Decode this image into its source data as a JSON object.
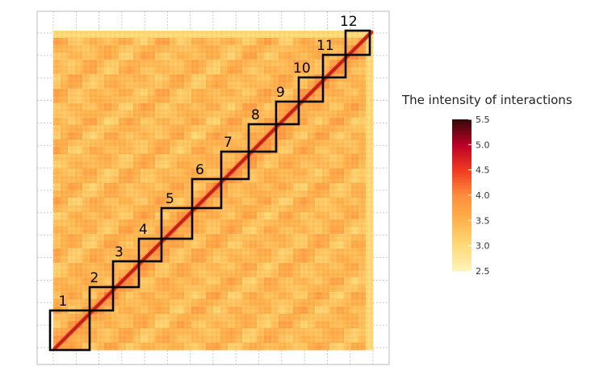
{
  "chart_data": {
    "type": "heatmap",
    "title": "",
    "xlabel": "",
    "ylabel": "",
    "grid": true,
    "domains": [
      {
        "label": "1"
      },
      {
        "label": "2"
      },
      {
        "label": "3"
      },
      {
        "label": "4"
      },
      {
        "label": "5"
      },
      {
        "label": "6"
      },
      {
        "label": "7"
      },
      {
        "label": "8"
      },
      {
        "label": "9"
      },
      {
        "label": "10"
      },
      {
        "label": "11"
      },
      {
        "label": "12"
      }
    ],
    "legend": {
      "title": "The intensity of interactions",
      "placement": "right",
      "range": [
        2.5,
        5.5
      ],
      "ticks": [
        "2.5",
        "3.0",
        "3.5",
        "4.0",
        "4.5",
        "5.0",
        "5.5"
      ],
      "colors": [
        "#fff2b8",
        "#fed976",
        "#feb24c",
        "#fd8d3c",
        "#f03b20",
        "#bd0026",
        "#3a0a0a"
      ]
    },
    "background_level": 3.4,
    "diagonal_level": 4.6
  }
}
